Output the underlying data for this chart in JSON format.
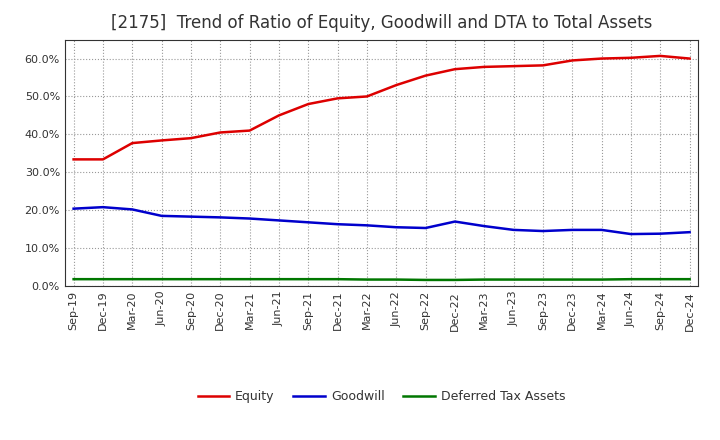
{
  "title": "[2175]  Trend of Ratio of Equity, Goodwill and DTA to Total Assets",
  "x_labels": [
    "Sep-19",
    "Dec-19",
    "Mar-20",
    "Jun-20",
    "Sep-20",
    "Dec-20",
    "Mar-21",
    "Jun-21",
    "Sep-21",
    "Dec-21",
    "Mar-22",
    "Jun-22",
    "Sep-22",
    "Dec-22",
    "Mar-23",
    "Jun-23",
    "Sep-23",
    "Dec-23",
    "Mar-24",
    "Jun-24",
    "Sep-24",
    "Dec-24"
  ],
  "equity": [
    0.334,
    0.334,
    0.377,
    0.384,
    0.39,
    0.405,
    0.41,
    0.45,
    0.48,
    0.495,
    0.5,
    0.53,
    0.555,
    0.572,
    0.578,
    0.58,
    0.582,
    0.595,
    0.6,
    0.602,
    0.607,
    0.6
  ],
  "goodwill": [
    0.204,
    0.208,
    0.202,
    0.185,
    0.183,
    0.181,
    0.178,
    0.173,
    0.168,
    0.163,
    0.16,
    0.155,
    0.153,
    0.17,
    0.158,
    0.148,
    0.145,
    0.148,
    0.148,
    0.137,
    0.138,
    0.142
  ],
  "dta": [
    0.018,
    0.018,
    0.018,
    0.018,
    0.018,
    0.018,
    0.018,
    0.018,
    0.018,
    0.018,
    0.017,
    0.017,
    0.016,
    0.016,
    0.017,
    0.017,
    0.017,
    0.017,
    0.017,
    0.018,
    0.018,
    0.018
  ],
  "equity_color": "#dd0000",
  "goodwill_color": "#0000cc",
  "dta_color": "#007700",
  "bg_color": "#ffffff",
  "plot_bg_color": "#ffffff",
  "grid_color": "#999999",
  "title_color": "#333333",
  "ylim": [
    0.0,
    0.65
  ],
  "yticks": [
    0.0,
    0.1,
    0.2,
    0.3,
    0.4,
    0.5,
    0.6
  ],
  "title_fontsize": 12,
  "tick_fontsize": 8,
  "legend_labels": [
    "Equity",
    "Goodwill",
    "Deferred Tax Assets"
  ]
}
